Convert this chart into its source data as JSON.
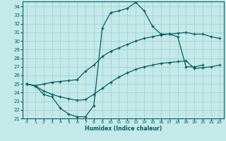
{
  "xlabel": "Humidex (Indice chaleur)",
  "xlim": [
    -0.5,
    23.5
  ],
  "ylim": [
    21,
    34.6
  ],
  "xticks": [
    0,
    1,
    2,
    3,
    4,
    5,
    6,
    7,
    8,
    9,
    10,
    11,
    12,
    13,
    14,
    15,
    16,
    17,
    18,
    19,
    20,
    21,
    22,
    23
  ],
  "yticks": [
    21,
    22,
    23,
    24,
    25,
    26,
    27,
    28,
    29,
    30,
    31,
    32,
    33,
    34
  ],
  "bg_color": "#c5e8e8",
  "line_color": "#006060",
  "grid_color": "#9dcece",
  "line1_x": [
    0,
    1,
    2,
    3,
    4,
    5,
    6,
    7,
    8,
    9,
    10,
    11,
    12,
    13,
    14,
    15,
    16,
    17,
    18,
    19,
    20,
    21
  ],
  "line1_y": [
    25.0,
    24.8,
    23.8,
    23.5,
    22.2,
    21.5,
    21.2,
    21.2,
    22.5,
    31.5,
    33.3,
    33.5,
    33.8,
    34.5,
    33.5,
    31.7,
    30.8,
    30.8,
    30.5,
    27.0,
    27.0,
    27.2
  ],
  "line2_x": [
    0,
    1,
    2,
    3,
    4,
    5,
    6,
    7,
    8,
    9,
    10,
    11,
    12,
    13,
    14,
    15,
    16,
    17,
    18,
    19,
    20,
    21,
    22,
    23
  ],
  "line2_y": [
    25.0,
    24.8,
    25.0,
    25.2,
    25.3,
    25.4,
    25.5,
    26.5,
    27.2,
    28.2,
    28.8,
    29.2,
    29.6,
    30.0,
    30.3,
    30.5,
    30.7,
    30.8,
    30.9,
    31.0,
    30.8,
    30.8,
    30.5,
    30.3
  ],
  "line3_x": [
    0,
    1,
    2,
    3,
    4,
    5,
    6,
    7,
    8,
    9,
    10,
    11,
    12,
    13,
    14,
    15,
    16,
    17,
    18,
    19,
    20,
    21,
    22,
    23
  ],
  "line3_y": [
    25.0,
    24.8,
    24.2,
    23.8,
    23.5,
    23.3,
    23.1,
    23.2,
    23.8,
    24.5,
    25.2,
    25.8,
    26.3,
    26.7,
    27.0,
    27.2,
    27.4,
    27.5,
    27.6,
    27.7,
    26.8,
    26.9,
    27.0,
    27.2
  ]
}
